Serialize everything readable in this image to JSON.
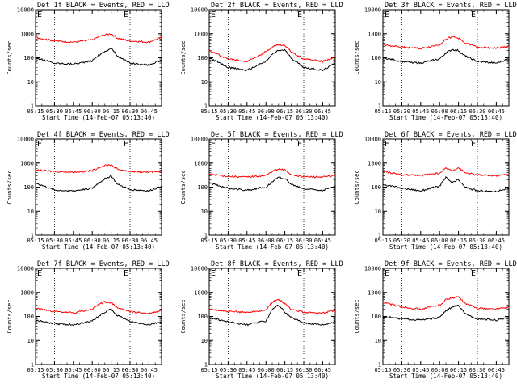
{
  "figure": {
    "flags": {
      "left": "E",
      "right": "E"
    }
  },
  "chart_data": [
    {
      "type": "line",
      "title": "Det 1f BLACK = Events, RED = LLD",
      "xlabel": "Start Time (14-Feb-07 05:13:40)",
      "ylabel": "Counts/sec",
      "yscale": "log",
      "ylim": [
        1,
        10000
      ],
      "xlim": [
        "05:15",
        "06:55"
      ],
      "x_ticks": [
        "05:15",
        "05:30",
        "05:45",
        "06:00",
        "06:15",
        "06:30",
        "06:45"
      ],
      "y_ticks": [
        "1",
        "10",
        "100",
        "1000",
        "10000"
      ],
      "markers": [
        "05:30",
        "06:30"
      ],
      "x": [
        "05:15",
        "05:30",
        "05:45",
        "06:00",
        "06:05",
        "06:10",
        "06:15",
        "06:20",
        "06:30",
        "06:45",
        "06:55"
      ],
      "series": [
        {
          "name": "BLACK = Events",
          "color": "#000000",
          "values": [
            100,
            60,
            55,
            75,
            130,
            180,
            250,
            120,
            60,
            50,
            80
          ]
        },
        {
          "name": "RED = LLD",
          "color": "#ff0000",
          "values": [
            700,
            500,
            450,
            550,
            750,
            900,
            1000,
            650,
            500,
            450,
            700
          ]
        }
      ]
    },
    {
      "type": "line",
      "title": "Det 2f BLACK = Events, RED = LLD",
      "xlabel": "Start Time (14-Feb-07 05:13:40)",
      "ylabel": "Counts/sec",
      "yscale": "log",
      "ylim": [
        1,
        10000
      ],
      "xlim": [
        "05:15",
        "06:55"
      ],
      "x_ticks": [
        "05:15",
        "05:30",
        "05:45",
        "06:00",
        "06:15",
        "06:30",
        "06:45"
      ],
      "y_ticks": [
        "1",
        "10",
        "100",
        "1000",
        "10000"
      ],
      "markers": [
        "05:30",
        "06:30"
      ],
      "x": [
        "05:15",
        "05:30",
        "05:45",
        "06:00",
        "06:05",
        "06:10",
        "06:15",
        "06:20",
        "06:30",
        "06:45",
        "06:55"
      ],
      "series": [
        {
          "name": "BLACK = Events",
          "color": "#000000",
          "values": [
            100,
            40,
            30,
            70,
            140,
            200,
            210,
            100,
            40,
            30,
            60
          ]
        },
        {
          "name": "RED = LLD",
          "color": "#ff0000",
          "values": [
            200,
            90,
            70,
            180,
            280,
            350,
            320,
            180,
            90,
            70,
            110
          ]
        }
      ]
    },
    {
      "type": "line",
      "title": "Det 3f BLACK = Events, RED = LLD",
      "xlabel": "Start Time (14-Feb-07 05:13:40)",
      "ylabel": "Counts/sec",
      "yscale": "log",
      "ylim": [
        1,
        10000
      ],
      "xlim": [
        "05:15",
        "06:55"
      ],
      "x_ticks": [
        "05:15",
        "05:30",
        "05:45",
        "06:00",
        "06:15",
        "06:30",
        "06:45"
      ],
      "y_ticks": [
        "1",
        "10",
        "100",
        "1000",
        "10000"
      ],
      "markers": [
        "05:30",
        "06:30"
      ],
      "x": [
        "05:15",
        "05:30",
        "05:45",
        "06:00",
        "06:05",
        "06:10",
        "06:15",
        "06:20",
        "06:30",
        "06:45",
        "06:55"
      ],
      "series": [
        {
          "name": "BLACK = Events",
          "color": "#000000",
          "values": [
            100,
            70,
            60,
            90,
            160,
            220,
            200,
            120,
            70,
            60,
            90
          ]
        },
        {
          "name": "RED = LLD",
          "color": "#ff0000",
          "values": [
            350,
            280,
            240,
            350,
            600,
            750,
            650,
            420,
            280,
            250,
            300
          ]
        }
      ]
    },
    {
      "type": "line",
      "title": "Det 4f BLACK = Events, RED = LLD",
      "xlabel": "Start Time (14-Feb-07 05:13:40)",
      "ylabel": "Counts/sec",
      "yscale": "log",
      "ylim": [
        1,
        10000
      ],
      "xlim": [
        "05:15",
        "06:55"
      ],
      "x_ticks": [
        "05:15",
        "05:30",
        "05:45",
        "06:00",
        "06:15",
        "06:30",
        "06:45"
      ],
      "y_ticks": [
        "1",
        "10",
        "100",
        "1000",
        "10000"
      ],
      "markers": [
        "05:30",
        "06:30"
      ],
      "x": [
        "05:15",
        "05:30",
        "05:45",
        "06:00",
        "06:05",
        "06:10",
        "06:15",
        "06:20",
        "06:30",
        "06:45",
        "06:55"
      ],
      "series": [
        {
          "name": "BLACK = Events",
          "color": "#000000",
          "values": [
            150,
            75,
            70,
            90,
            150,
            220,
            300,
            130,
            80,
            70,
            110
          ]
        },
        {
          "name": "RED = LLD",
          "color": "#ff0000",
          "values": [
            500,
            450,
            420,
            480,
            650,
            800,
            850,
            550,
            450,
            420,
            460
          ]
        }
      ]
    },
    {
      "type": "line",
      "title": "Det 5f BLACK = Events, RED = LLD",
      "xlabel": "Start Time (14-Feb-07 05:13:40)",
      "ylabel": "Counts/sec",
      "yscale": "log",
      "ylim": [
        1,
        10000
      ],
      "xlim": [
        "05:15",
        "06:55"
      ],
      "x_ticks": [
        "05:15",
        "05:30",
        "05:45",
        "06:00",
        "06:15",
        "06:30",
        "06:45"
      ],
      "y_ticks": [
        "1",
        "10",
        "100",
        "1000",
        "10000"
      ],
      "markers": [
        "05:30",
        "06:30"
      ],
      "x": [
        "05:15",
        "05:30",
        "05:45",
        "06:00",
        "06:05",
        "06:10",
        "06:15",
        "06:20",
        "06:30",
        "06:45",
        "06:55"
      ],
      "series": [
        {
          "name": "BLACK = Events",
          "color": "#000000",
          "values": [
            150,
            90,
            75,
            100,
            170,
            250,
            230,
            130,
            85,
            75,
            110
          ]
        },
        {
          "name": "RED = LLD",
          "color": "#ff0000",
          "values": [
            350,
            280,
            260,
            300,
            450,
            550,
            520,
            330,
            270,
            260,
            300
          ]
        }
      ]
    },
    {
      "type": "line",
      "title": "Det 6f BLACK = Events, RED = LLD",
      "xlabel": "Start Time (14-Feb-07 05:13:40)",
      "ylabel": "Counts/sec",
      "yscale": "log",
      "ylim": [
        1,
        10000
      ],
      "xlim": [
        "05:15",
        "06:55"
      ],
      "x_ticks": [
        "05:15",
        "05:30",
        "05:45",
        "06:00",
        "06:15",
        "06:30",
        "06:45"
      ],
      "y_ticks": [
        "1",
        "10",
        "100",
        "1000",
        "10000"
      ],
      "markers": [
        "05:30",
        "06:30"
      ],
      "x": [
        "05:15",
        "05:30",
        "05:45",
        "06:00",
        "06:05",
        "06:10",
        "06:15",
        "06:20",
        "06:30",
        "06:45",
        "06:55"
      ],
      "series": [
        {
          "name": "BLACK = Events",
          "color": "#000000",
          "values": [
            130,
            90,
            70,
            110,
            250,
            150,
            200,
            100,
            70,
            65,
            95
          ]
        },
        {
          "name": "RED = LLD",
          "color": "#ff0000",
          "values": [
            450,
            330,
            300,
            380,
            600,
            500,
            650,
            400,
            320,
            300,
            350
          ]
        }
      ]
    },
    {
      "type": "line",
      "title": "Det 7f BLACK = Events, RED = LLD",
      "xlabel": "Start Time (14-Feb-07 05:13:40)",
      "ylabel": "Counts/sec",
      "yscale": "log",
      "ylim": [
        1,
        10000
      ],
      "xlim": [
        "05:15",
        "06:55"
      ],
      "x_ticks": [
        "05:15",
        "05:30",
        "05:45",
        "06:00",
        "06:15",
        "06:30",
        "06:45"
      ],
      "y_ticks": [
        "1",
        "10",
        "100",
        "1000",
        "10000"
      ],
      "markers": [
        "05:30",
        "06:30"
      ],
      "x": [
        "05:15",
        "05:30",
        "05:45",
        "06:00",
        "06:05",
        "06:10",
        "06:15",
        "06:20",
        "06:30",
        "06:45",
        "06:55"
      ],
      "series": [
        {
          "name": "BLACK = Events",
          "color": "#000000",
          "values": [
            70,
            50,
            45,
            65,
            100,
            150,
            200,
            110,
            60,
            45,
            60
          ]
        },
        {
          "name": "RED = LLD",
          "color": "#ff0000",
          "values": [
            220,
            160,
            140,
            200,
            320,
            400,
            380,
            230,
            160,
            130,
            180
          ]
        }
      ]
    },
    {
      "type": "line",
      "title": "Det 8f BLACK = Events, RED = LLD",
      "xlabel": "Start Time (14-Feb-07 05:13:40)",
      "ylabel": "Counts/sec",
      "yscale": "log",
      "ylim": [
        1,
        10000
      ],
      "xlim": [
        "05:15",
        "06:55"
      ],
      "x_ticks": [
        "05:15",
        "05:30",
        "05:45",
        "06:00",
        "06:15",
        "06:30",
        "06:45"
      ],
      "y_ticks": [
        "1",
        "10",
        "100",
        "1000",
        "10000"
      ],
      "markers": [
        "05:30",
        "06:30"
      ],
      "x": [
        "05:15",
        "05:30",
        "05:45",
        "06:00",
        "06:05",
        "06:10",
        "06:15",
        "06:20",
        "06:30",
        "06:45",
        "06:55"
      ],
      "series": [
        {
          "name": "BLACK = Events",
          "color": "#000000",
          "values": [
            90,
            60,
            45,
            65,
            200,
            300,
            150,
            90,
            55,
            45,
            60
          ]
        },
        {
          "name": "RED = LLD",
          "color": "#ff0000",
          "values": [
            200,
            160,
            150,
            180,
            400,
            500,
            350,
            200,
            150,
            140,
            180
          ]
        }
      ]
    },
    {
      "type": "line",
      "title": "Det 9f BLACK = Events, RED = LLD",
      "xlabel": "Start Time (14-Feb-07 05:13:40)",
      "ylabel": "Counts/sec",
      "yscale": "log",
      "ylim": [
        1,
        10000
      ],
      "xlim": [
        "05:15",
        "06:55"
      ],
      "x_ticks": [
        "05:15",
        "05:30",
        "05:45",
        "06:00",
        "06:15",
        "06:30",
        "06:45"
      ],
      "y_ticks": [
        "1",
        "10",
        "100",
        "1000",
        "10000"
      ],
      "markers": [
        "05:30",
        "06:30"
      ],
      "x": [
        "05:15",
        "05:30",
        "05:45",
        "06:00",
        "06:05",
        "06:10",
        "06:15",
        "06:20",
        "06:30",
        "06:45",
        "06:55"
      ],
      "series": [
        {
          "name": "BLACK = Events",
          "color": "#000000",
          "values": [
            100,
            80,
            70,
            90,
            170,
            250,
            280,
            130,
            80,
            70,
            90
          ]
        },
        {
          "name": "RED = LLD",
          "color": "#ff0000",
          "values": [
            380,
            250,
            200,
            300,
            500,
            600,
            650,
            350,
            220,
            200,
            250
          ]
        }
      ]
    }
  ]
}
